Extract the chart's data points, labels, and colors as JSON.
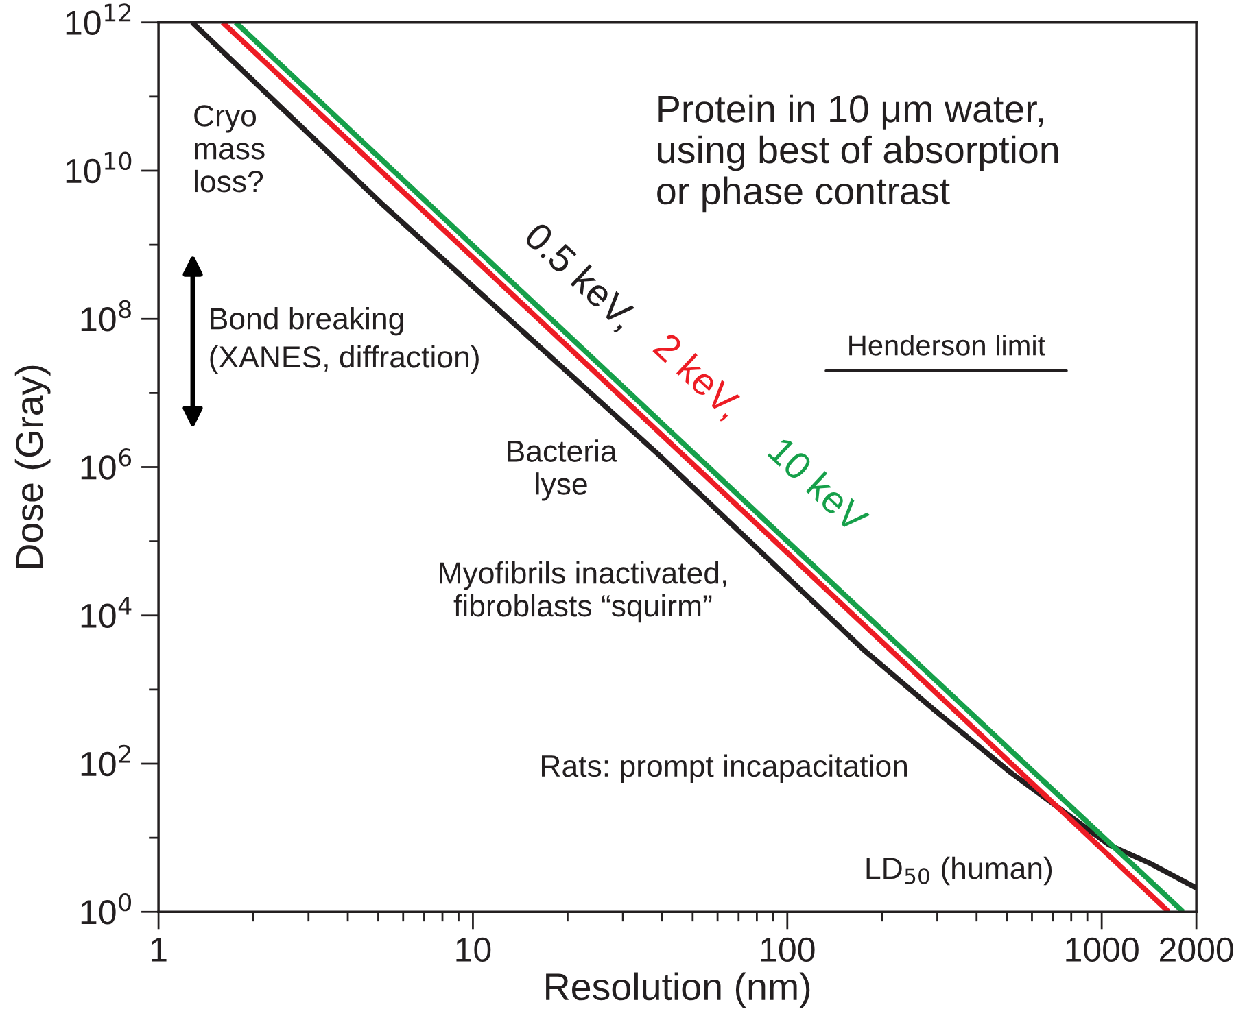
{
  "chart_data": {
    "type": "line",
    "xlabel": "Resolution (nm)",
    "ylabel": "Dose (Gray)",
    "log": "xy",
    "xlim": [
      1,
      2000
    ],
    "ylim": [
      1,
      1000000000000.0
    ],
    "xticks": [
      1,
      {
        "value": 2,
        "label": null
      },
      {
        "value": 3,
        "label": null
      },
      {
        "value": 4,
        "label": null
      },
      {
        "value": 5,
        "label": null
      },
      {
        "value": 6,
        "label": null
      },
      {
        "value": 7,
        "label": null
      },
      {
        "value": 8,
        "label": null
      },
      {
        "value": 9,
        "label": null
      },
      10,
      {
        "value": 20,
        "label": null
      },
      {
        "value": 30,
        "label": null
      },
      {
        "value": 40,
        "label": null
      },
      {
        "value": 50,
        "label": null
      },
      {
        "value": 60,
        "label": null
      },
      {
        "value": 70,
        "label": null
      },
      {
        "value": 80,
        "label": null
      },
      {
        "value": 90,
        "label": null
      },
      100,
      {
        "value": 200,
        "label": null
      },
      {
        "value": 300,
        "label": null
      },
      {
        "value": 400,
        "label": null
      },
      {
        "value": 500,
        "label": null
      },
      {
        "value": 600,
        "label": null
      },
      {
        "value": 700,
        "label": null
      },
      {
        "value": 800,
        "label": null
      },
      {
        "value": 900,
        "label": null
      },
      1000,
      2000
    ],
    "yticks": [
      {
        "value": 1,
        "label": "10$^{0}$"
      },
      {
        "value": 10,
        "label": null
      },
      {
        "value": 100,
        "label": "10$^{2}$"
      },
      {
        "value": 1000,
        "label": null
      },
      {
        "value": 10000,
        "label": "10$^{4}$"
      },
      {
        "value": 100000,
        "label": null
      },
      {
        "value": 1000000,
        "label": "10$^{6}$"
      },
      {
        "value": 10000000,
        "label": null
      },
      {
        "value": 100000000,
        "label": "10$^{8}$"
      },
      {
        "value": 1000000000,
        "label": null
      },
      {
        "value": 10000000000,
        "label": "10$^{10}$"
      },
      {
        "value": 100000000000,
        "label": null
      },
      {
        "value": 1000000000000,
        "label": "10$^{12}$"
      }
    ],
    "grid": false,
    "legend": false,
    "marker": "none",
    "line_style": "solid",
    "series": [
      {
        "name": "0.5 keV,",
        "color": "#231f20",
        "x": [
          1.28,
          5.2,
          38.8,
          174,
          289,
          515,
          1057,
          1428,
          2000
        ],
        "values": [
          1000000000000.0,
          3400000000.0,
          1500000.0,
          3500,
          560,
          75,
          8,
          4.5,
          2.1
        ]
      },
      {
        "name": "2 keV,",
        "color": "#ed1c24",
        "x": [
          1.6,
          100,
          1634
        ],
        "values": [
          1000000000000.0,
          70000.0,
          1
        ]
      },
      {
        "name": "10 keV",
        "color": "#16a04a",
        "x": [
          1.76,
          100,
          1816
        ],
        "values": [
          1000000000000.0,
          100000.0,
          1
        ]
      }
    ],
    "ref_lines": [
      {
        "axis": "y",
        "value": 20000000.0,
        "label": "Henderson limit",
        "color": "#231f20"
      }
    ],
    "annotations": [
      "Protein in 10 μm water,\nusing best of absorption\nor phase contrast",
      "Cryo\nmass\nloss?",
      "Bond breaking\n(XANES, diffraction)",
      "Bacteria\nlyse",
      "Myofibrils inactivated,\nfibroblasts “squirm”",
      "Rats: prompt incapacitation",
      "LD$_{50}$ (human)"
    ]
  }
}
